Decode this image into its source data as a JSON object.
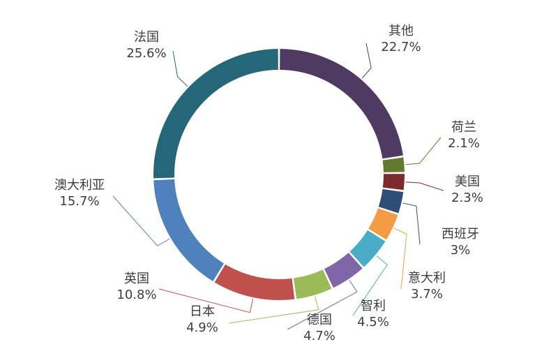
{
  "chart_data": {
    "type": "pie",
    "donut": true,
    "title": "",
    "categories": [
      "其他",
      "荷兰",
      "美国",
      "西班牙",
      "意大利",
      "智利",
      "德国",
      "日本",
      "英国",
      "澳大利亚",
      "法国"
    ],
    "values": [
      22.7,
      2.1,
      2.3,
      3,
      3.7,
      4.5,
      4.7,
      4.9,
      10.8,
      15.7,
      25.6
    ],
    "value_labels": [
      "22.7%",
      "2.1%",
      "2.3%",
      "3%",
      "3.7%",
      "4.5%",
      "4.7%",
      "4.9%",
      "10.8%",
      "15.7%",
      "25.6%"
    ],
    "colors": [
      "#4f3a62",
      "#627a2e",
      "#7c2c2c",
      "#2e4e78",
      "#f59a45",
      "#4bacc6",
      "#8066a8",
      "#9bbb59",
      "#c0504d",
      "#4f81bd",
      "#256778"
    ],
    "start_angle_deg": 0,
    "direction": "clockwise",
    "legend": "none",
    "data_labels": "outside with leader lines"
  }
}
